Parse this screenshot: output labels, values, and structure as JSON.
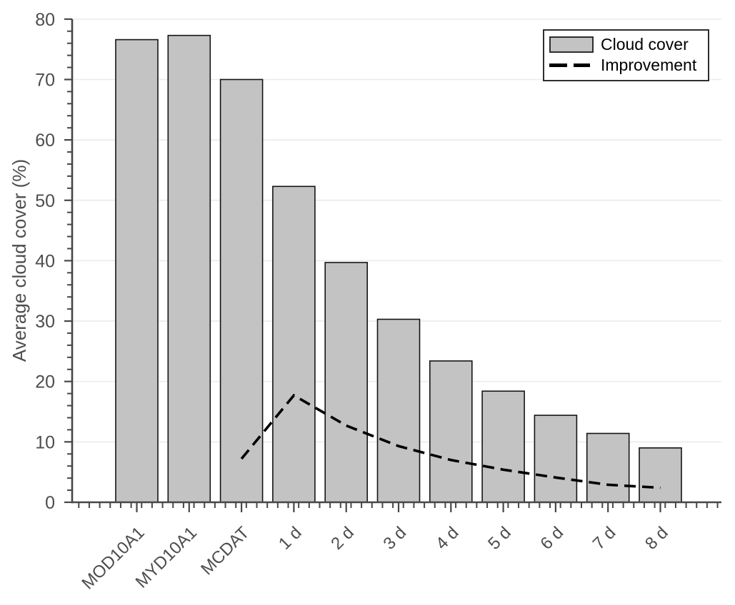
{
  "chart_data": {
    "type": "bar",
    "title": "",
    "xlabel": "",
    "ylabel": "Average cloud cover (%)",
    "categories": [
      "MOD10A1",
      "MYD10A1",
      "MCDAT",
      "1 d",
      "2 d",
      "3 d",
      "4 d",
      "5 d",
      "6 d",
      "7 d",
      "8 d"
    ],
    "series": [
      {
        "name": "Cloud cover",
        "type": "bar",
        "values": [
          76.6,
          77.3,
          70.0,
          52.3,
          39.7,
          30.3,
          23.4,
          18.4,
          14.4,
          11.4,
          9.0
        ]
      },
      {
        "name": "Improvement",
        "type": "line",
        "style": "dashed",
        "values": [
          null,
          null,
          7.2,
          17.7,
          12.7,
          9.3,
          7.0,
          5.4,
          4.1,
          2.9,
          2.4
        ]
      }
    ],
    "ylim": [
      0,
      80
    ],
    "yticks": [
      0,
      10,
      20,
      30,
      40,
      50,
      60,
      70,
      80
    ],
    "ytick_labels": [
      "0",
      "10",
      "20",
      "30",
      "40",
      "50",
      "60",
      "70",
      "80"
    ],
    "y_minor_tick_step": 2,
    "grid": "horizontal",
    "legend": {
      "position": "top-right",
      "entries": [
        {
          "label": "Cloud cover",
          "swatch": "bar"
        },
        {
          "label": "Improvement",
          "swatch": "dashed-line"
        }
      ]
    },
    "colors": {
      "bar_fill": "#c3c3c3",
      "bar_stroke": "#141414",
      "line": "#000000",
      "grid": "#ececec",
      "axis": "#474747",
      "tick_label": "#4d4d4d",
      "legend_border": "#2e2e2e",
      "legend_text": "#000000",
      "background": "#ffffff"
    }
  }
}
